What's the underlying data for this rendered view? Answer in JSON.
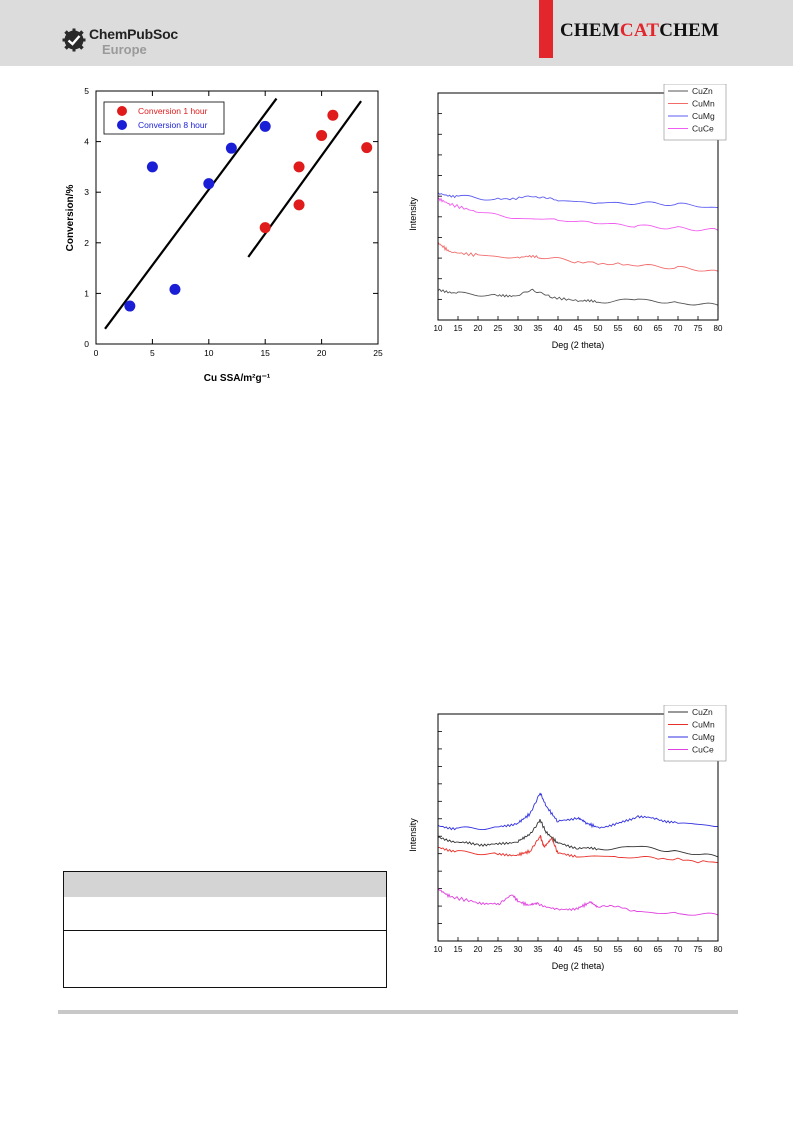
{
  "header": {
    "publisher_name": "ChemPubSoc",
    "publisher_sub": "Europe",
    "journal_part1": "CHEM",
    "journal_part2": "CAT",
    "journal_part3": "CHEM",
    "brand_red": "#e3262c",
    "header_gray": "#dcdcdc"
  },
  "chart_data": [
    {
      "type": "scatter",
      "title": "",
      "xlabel": "Cu SSA/m²g⁻¹",
      "ylabel": "Conversion/%",
      "xlim": [
        0,
        25
      ],
      "ylim": [
        0,
        5
      ],
      "xticks": [
        "0",
        "5",
        "10",
        "15",
        "20",
        "25"
      ],
      "yticks": [
        "0",
        "1",
        "2",
        "3",
        "4",
        "5"
      ],
      "legend": "top-left",
      "grid": false,
      "series": [
        {
          "name": "Conversion 1 hour",
          "color": "#e01b1b",
          "points": [
            [
              15,
              2.3
            ],
            [
              18,
              2.75
            ],
            [
              18,
              3.5
            ],
            [
              20,
              4.12
            ],
            [
              21,
              4.52
            ],
            [
              24,
              3.88
            ]
          ]
        },
        {
          "name": "Conversion 8 hour",
          "color": "#1a1fd6",
          "points": [
            [
              3,
              0.75
            ],
            [
              5,
              3.5
            ],
            [
              7,
              1.08
            ],
            [
              10,
              3.17
            ],
            [
              12,
              3.87
            ],
            [
              15,
              4.3
            ]
          ]
        }
      ],
      "trend_lines": [
        {
          "from": [
            0.8,
            0.3
          ],
          "to": [
            16,
            4.85
          ]
        },
        {
          "from": [
            13.5,
            1.72
          ],
          "to": [
            23.5,
            4.8
          ]
        }
      ]
    },
    {
      "type": "line",
      "title": "",
      "xlabel": "Deg (2 theta)",
      "ylabel": "Intensity",
      "xlim": [
        10,
        80
      ],
      "ylim": [
        0,
        10
      ],
      "xticks": [
        "10",
        "15",
        "20",
        "25",
        "30",
        "35",
        "40",
        "45",
        "50",
        "55",
        "60",
        "65",
        "70",
        "75",
        "80"
      ],
      "legend": "top-right",
      "grid": false,
      "series": [
        {
          "name": "CuZn",
          "color": "#555555",
          "points": [
            [
              10,
              1.3
            ],
            [
              15,
              1.2
            ],
            [
              25,
              1.05
            ],
            [
              30,
              1.1
            ],
            [
              34,
              1.3
            ],
            [
              38,
              1.0
            ],
            [
              45,
              0.85
            ],
            [
              50,
              0.8
            ],
            [
              60,
              0.9
            ],
            [
              70,
              0.75
            ],
            [
              80,
              0.65
            ]
          ]
        },
        {
          "name": "CuMn",
          "color": "#f26b6b",
          "points": [
            [
              10,
              3.4
            ],
            [
              13,
              3.0
            ],
            [
              20,
              2.85
            ],
            [
              30,
              2.75
            ],
            [
              35,
              2.8
            ],
            [
              45,
              2.55
            ],
            [
              60,
              2.4
            ],
            [
              70,
              2.3
            ],
            [
              80,
              2.15
            ]
          ]
        },
        {
          "name": "CuMg",
          "color": "#5b5bf0",
          "points": [
            [
              10,
              5.55
            ],
            [
              15,
              5.45
            ],
            [
              25,
              5.3
            ],
            [
              34,
              5.45
            ],
            [
              40,
              5.25
            ],
            [
              50,
              5.15
            ],
            [
              60,
              5.15
            ],
            [
              70,
              5.1
            ],
            [
              80,
              4.95
            ]
          ]
        },
        {
          "name": "CuCe",
          "color": "#f05df0",
          "points": [
            [
              10,
              5.35
            ],
            [
              13,
              5.1
            ],
            [
              20,
              4.75
            ],
            [
              30,
              4.5
            ],
            [
              40,
              4.4
            ],
            [
              50,
              4.25
            ],
            [
              60,
              4.15
            ],
            [
              70,
              4.05
            ],
            [
              80,
              3.95
            ]
          ]
        }
      ]
    },
    {
      "type": "line",
      "title": "",
      "xlabel": "Deg (2 theta)",
      "ylabel": "Intensity",
      "xlim": [
        10,
        80
      ],
      "ylim": [
        0,
        10
      ],
      "xticks": [
        "10",
        "15",
        "20",
        "25",
        "30",
        "35",
        "40",
        "45",
        "50",
        "55",
        "60",
        "65",
        "70",
        "75",
        "80"
      ],
      "legend": "top-right",
      "grid": false,
      "series": [
        {
          "name": "CuZn",
          "color": "#333333",
          "points": [
            [
              10,
              4.55
            ],
            [
              15,
              4.35
            ],
            [
              20,
              4.25
            ],
            [
              25,
              4.25
            ],
            [
              30,
              4.4
            ],
            [
              33,
              4.7
            ],
            [
              35.5,
              5.35
            ],
            [
              37,
              4.8
            ],
            [
              40,
              4.3
            ],
            [
              45,
              4.1
            ],
            [
              50,
              4.05
            ],
            [
              60,
              4.15
            ],
            [
              70,
              3.95
            ],
            [
              80,
              3.7
            ]
          ]
        },
        {
          "name": "CuMn",
          "color": "#e8302a",
          "points": [
            [
              10,
              4.1
            ],
            [
              15,
              3.95
            ],
            [
              25,
              3.8
            ],
            [
              30,
              3.8
            ],
            [
              33,
              3.95
            ],
            [
              35.5,
              4.65
            ],
            [
              36.5,
              4.15
            ],
            [
              38.5,
              4.5
            ],
            [
              40,
              3.85
            ],
            [
              45,
              3.75
            ],
            [
              55,
              3.7
            ],
            [
              65,
              3.65
            ],
            [
              80,
              3.45
            ]
          ]
        },
        {
          "name": "CuMg",
          "color": "#3030e0",
          "points": [
            [
              10,
              5.05
            ],
            [
              15,
              4.95
            ],
            [
              25,
              5.0
            ],
            [
              30,
              5.2
            ],
            [
              33,
              5.6
            ],
            [
              35.5,
              6.55
            ],
            [
              37,
              5.95
            ],
            [
              40,
              5.25
            ],
            [
              45,
              5.45
            ],
            [
              47,
              5.2
            ],
            [
              50,
              5.0
            ],
            [
              55,
              5.15
            ],
            [
              60,
              5.5
            ],
            [
              65,
              5.35
            ],
            [
              70,
              5.2
            ],
            [
              80,
              5.05
            ]
          ]
        },
        {
          "name": "CuCe",
          "color": "#e040e0",
          "points": [
            [
              10,
              2.3
            ],
            [
              13,
              1.95
            ],
            [
              20,
              1.7
            ],
            [
              25,
              1.6
            ],
            [
              28.5,
              2.05
            ],
            [
              30,
              1.75
            ],
            [
              33,
              1.55
            ],
            [
              35,
              1.65
            ],
            [
              40,
              1.35
            ],
            [
              45,
              1.45
            ],
            [
              48,
              1.7
            ],
            [
              50,
              1.5
            ],
            [
              56,
              1.5
            ],
            [
              60,
              1.3
            ],
            [
              70,
              1.2
            ],
            [
              80,
              1.15
            ]
          ]
        }
      ]
    }
  ]
}
